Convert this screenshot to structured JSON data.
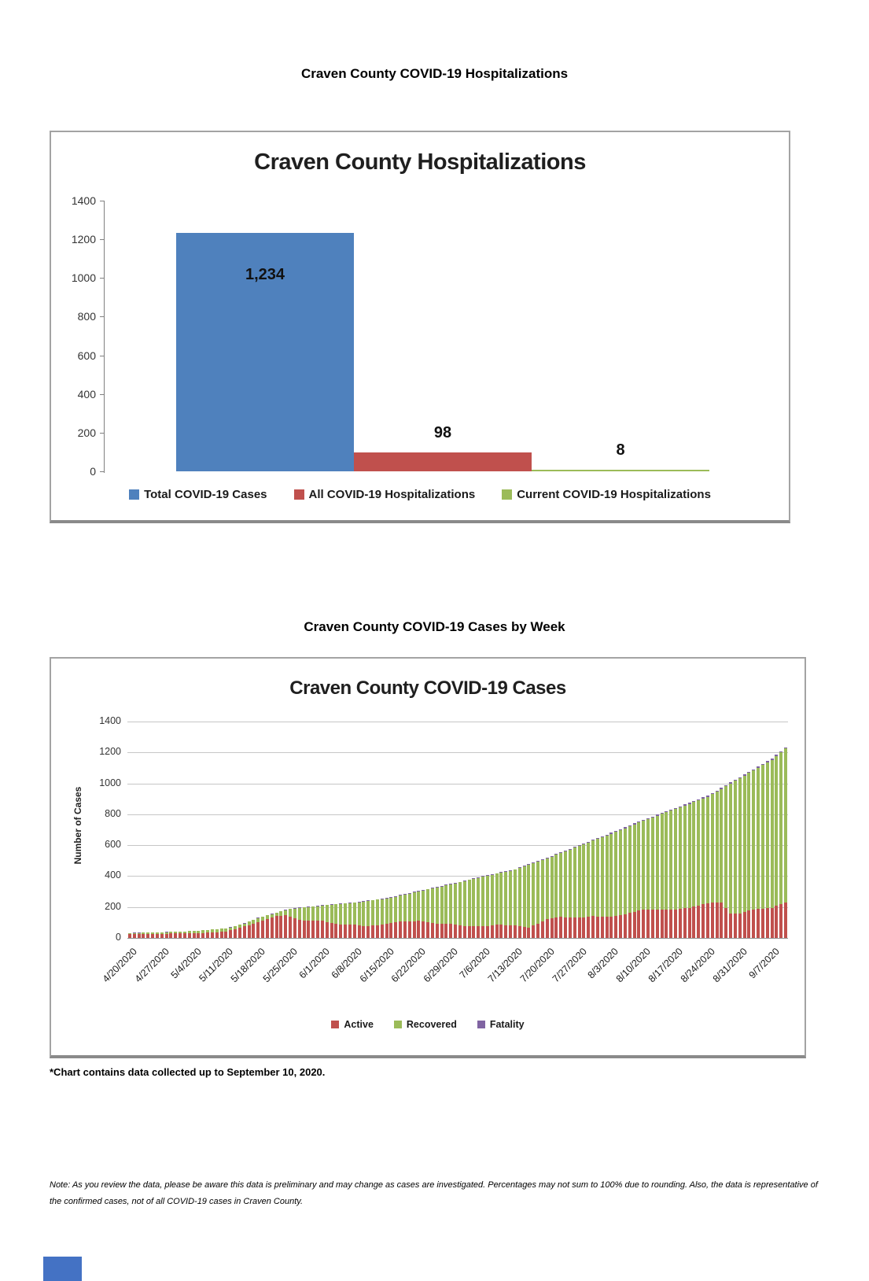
{
  "page": {
    "heading1": "Craven County COVID-19 Hospitalizations",
    "heading2": "Craven County COVID-19 Cases by Week",
    "footnote": "*Chart contains data collected up to September 10, 2020.",
    "note_line1": "Note: As you review the data, please be aware this data is preliminary and may change as cases are investigated. Percentages may not sum to 100% due to rounding. Also, the data is representative of",
    "note_line2": "the confirmed cases, not of all COVID-19 cases in Craven County."
  },
  "colors": {
    "series_blue": "#4F81BD",
    "series_red": "#C0504D",
    "series_green": "#9BBB59",
    "series_purple": "#8064A2",
    "gridline": "#c6c6c6",
    "axis": "#808080"
  },
  "chart_data": [
    {
      "type": "bar",
      "title": "Craven County Hospitalizations",
      "categories": [
        "Total COVID-19 Cases",
        "All COVID-19 Hospitalizations",
        "Current COVID-19 Hospitalizations"
      ],
      "values": [
        1234,
        98,
        8
      ],
      "labels": [
        "1,234",
        "98",
        "8"
      ],
      "bar_colors": [
        "#4F81BD",
        "#C0504D",
        "#9BBB59"
      ],
      "xlabel": "",
      "ylabel": "",
      "ylim": [
        0,
        1400
      ],
      "ytick_step": 200,
      "ytick_labels": [
        "0",
        "200",
        "400",
        "600",
        "800",
        "1000",
        "1200",
        "1400"
      ],
      "grid": false,
      "legend_position": "bottom"
    },
    {
      "type": "bar",
      "subtype": "stacked-daily",
      "title": "Craven County COVID-19 Cases",
      "xlabel": "",
      "ylabel": "Number of Cases",
      "ylim": [
        0,
        1400
      ],
      "ytick_step": 200,
      "ytick_labels": [
        "0",
        "200",
        "400",
        "600",
        "800",
        "1000",
        "1200",
        "1400"
      ],
      "grid": true,
      "legend_position": "bottom",
      "x_start_date": "4/20/2020",
      "x_end_date": "9/10/2020",
      "tick_interval_days": 7,
      "tick_labels": [
        "4/20/2020",
        "4/27/2020",
        "5/4/2020",
        "5/11/2020",
        "5/18/2020",
        "5/25/2020",
        "6/1/2020",
        "6/8/2020",
        "6/15/2020",
        "6/22/2020",
        "6/29/2020",
        "7/6/2020",
        "7/13/2020",
        "7/20/2020",
        "7/27/2020",
        "8/3/2020",
        "8/10/2020",
        "8/17/2020",
        "8/24/2020",
        "8/31/2020",
        "9/7/2020"
      ],
      "series": [
        {
          "name": "Active",
          "color": "#C0504D",
          "values": [
            25,
            25,
            26,
            26,
            26,
            27,
            27,
            27,
            27,
            28,
            28,
            29,
            29,
            30,
            30,
            31,
            33,
            34,
            36,
            37,
            39,
            40,
            49,
            58,
            66,
            75,
            83,
            92,
            100,
            110,
            120,
            130,
            140,
            145,
            150,
            135,
            127,
            118,
            110,
            110,
            110,
            110,
            110,
            103,
            97,
            90,
            89,
            88,
            86,
            85,
            82,
            78,
            75,
            79,
            83,
            86,
            90,
            95,
            100,
            105,
            106,
            108,
            109,
            110,
            105,
            100,
            95,
            94,
            93,
            91,
            90,
            85,
            80,
            75,
            75,
            75,
            75,
            75,
            78,
            82,
            85,
            84,
            83,
            81,
            80,
            75,
            70,
            65,
            79,
            93,
            106,
            120,
            125,
            130,
            135,
            134,
            133,
            131,
            130,
            133,
            137,
            140,
            139,
            138,
            136,
            135,
            142,
            148,
            155,
            163,
            170,
            178,
            185,
            185,
            185,
            185,
            185,
            185,
            185,
            185,
            188,
            192,
            195,
            203,
            210,
            218,
            225,
            227,
            228,
            230,
            195,
            160,
            160,
            160,
            168,
            177,
            185,
            188,
            190,
            193,
            195,
            207,
            218,
            230
          ]
        },
        {
          "name": "Recovered",
          "color": "#9BBB59",
          "values": [
            7,
            8,
            7,
            8,
            9,
            8,
            9,
            10,
            11,
            11,
            12,
            12,
            13,
            14,
            15,
            16,
            16,
            17,
            18,
            19,
            20,
            20,
            19,
            18,
            19,
            18,
            22,
            24,
            28,
            27,
            26,
            24,
            23,
            26,
            30,
            53,
            63,
            76,
            87,
            90,
            93,
            96,
            99,
            109,
            117,
            127,
            130,
            134,
            138,
            142,
            149,
            157,
            164,
            164,
            164,
            165,
            164,
            166,
            167,
            169,
            175,
            179,
            185,
            191,
            202,
            214,
            225,
            233,
            240,
            249,
            256,
            268,
            280,
            292,
            300,
            307,
            314,
            321,
            324,
            327,
            330,
            338,
            345,
            354,
            361,
            377,
            392,
            408,
            405,
            401,
            399,
            395,
            401,
            408,
            414,
            427,
            439,
            453,
            465,
            473,
            481,
            489,
            502,
            514,
            528,
            539,
            544,
            550,
            555,
            560,
            565,
            569,
            574,
            585,
            595,
            606,
            617,
            628,
            638,
            649,
            657,
            665,
            673,
            677,
            681,
            685,
            688,
            703,
            719,
            734,
            787,
            839,
            856,
            873,
            882,
            890,
            899,
            914,
            929,
            943,
            957,
            970,
            983,
            996
          ]
        },
        {
          "name": "Fatality",
          "color": "#8064A2",
          "values": [
            1,
            1,
            1,
            1,
            1,
            1,
            1,
            1,
            1,
            1,
            1,
            1,
            1,
            1,
            1,
            1,
            1,
            1,
            1,
            1,
            1,
            2,
            2,
            2,
            2,
            2,
            2,
            2,
            2,
            2,
            2,
            2,
            2,
            2,
            2,
            2,
            3,
            3,
            3,
            3,
            3,
            3,
            3,
            3,
            3,
            3,
            3,
            3,
            3,
            3,
            3,
            3,
            3,
            3,
            3,
            3,
            4,
            4,
            4,
            4,
            4,
            4,
            4,
            4,
            4,
            4,
            4,
            4,
            4,
            4,
            4,
            4,
            4,
            4,
            4,
            4,
            4,
            4,
            4,
            4,
            4,
            4,
            4,
            4,
            4,
            4,
            4,
            4,
            4,
            4,
            4,
            5,
            5,
            5,
            5,
            5,
            5,
            5,
            5,
            5,
            5,
            5,
            5,
            5,
            5,
            6,
            6,
            6,
            6,
            6,
            6,
            6,
            6,
            6,
            6,
            6,
            6,
            6,
            6,
            6,
            6,
            6,
            6,
            6,
            6,
            6,
            7,
            7,
            7,
            7,
            7,
            7,
            7,
            7,
            7,
            7,
            7,
            7,
            7,
            7,
            8,
            8,
            8,
            8
          ]
        }
      ]
    }
  ]
}
